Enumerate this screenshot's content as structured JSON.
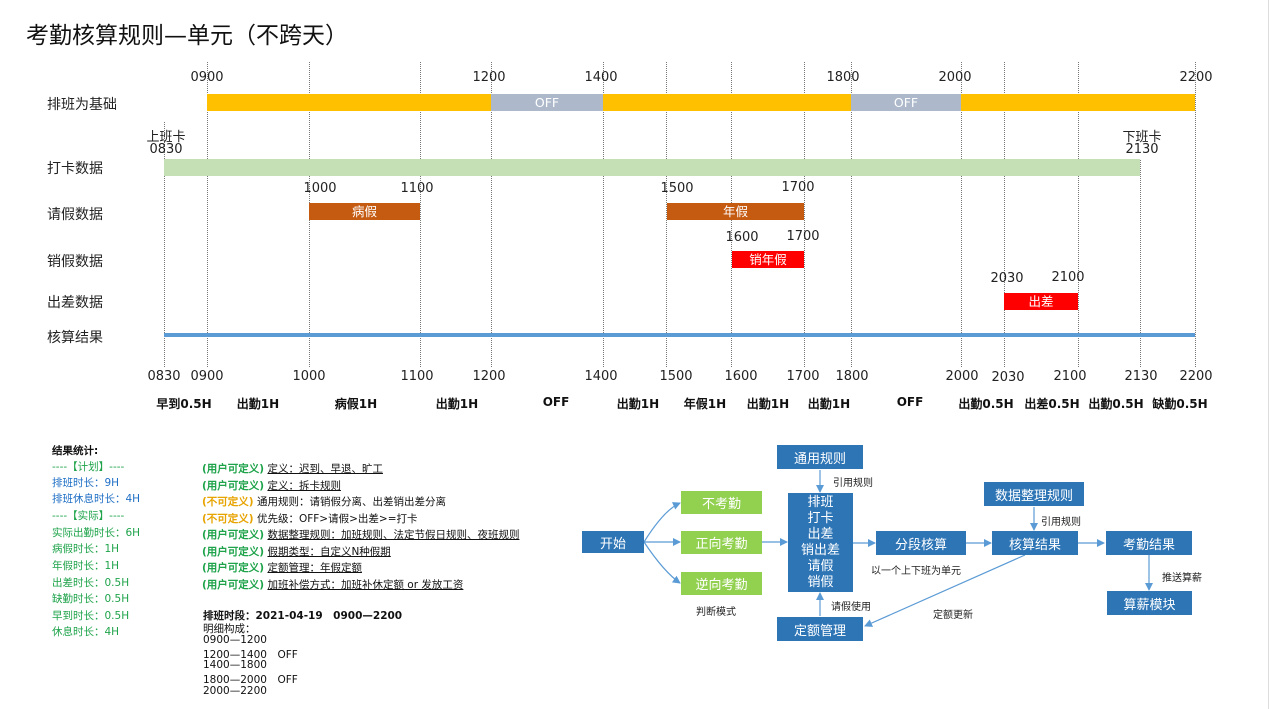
{
  "title": "考勤核算规则—单元（不跨天）",
  "rows": {
    "schedule": "排班为基础",
    "punch": "打卡数据",
    "leave": "请假数据",
    "cancel": "销假数据",
    "trip": "出差数据",
    "result": "核算结果"
  },
  "schedule_times": {
    "t0900": "0900",
    "t1200": "1200",
    "t1400": "1400",
    "t1800": "1800",
    "t2000": "2000",
    "t2200": "2200"
  },
  "schedule_off": [
    "OFF",
    "OFF"
  ],
  "punch": {
    "in_label": "上班卡",
    "in_time": "0830",
    "out_label": "下班卡",
    "out_time": "2130"
  },
  "leave": {
    "sick_start": "1000",
    "sick_end": "1100",
    "sick_label": "病假",
    "annual_start": "1500",
    "annual_end": "1700",
    "annual_label": "年假"
  },
  "cancel": {
    "start": "1600",
    "end": "1700",
    "label": "销年假"
  },
  "trip": {
    "start": "2030",
    "end": "2100",
    "label": "出差"
  },
  "result_ticks": [
    "0830",
    "0900",
    "1000",
    "1100",
    "1200",
    "1400",
    "1500",
    "1600",
    "1700",
    "1800",
    "2000",
    "2030",
    "2100",
    "2130",
    "2200"
  ],
  "result_segments": [
    "早到0.5H",
    "出勤1H",
    "病假1H",
    "出勤1H",
    "OFF",
    "出勤1H",
    "年假1H",
    "出勤1H",
    "出勤1H",
    "OFF",
    "出勤0.5H",
    "出差0.5H",
    "出勤0.5H",
    "缺勤0.5H"
  ],
  "stats": {
    "title": "结果统计:",
    "plan_header": "----【计划】----",
    "plan_work": "排班时长：9H",
    "plan_rest": "排班休息时长：4H",
    "actual_header": "----【实际】----",
    "actual_work": "实际出勤时长：6H",
    "sick": "病假时长：1H",
    "annual": "年假时长：1H",
    "trip": "出差时长：0.5H",
    "absent": "缺勤时长：0.5H",
    "early": "早到时长：0.5H",
    "rest": "休息时长：4H"
  },
  "rules": [
    {
      "tag": "(用户可定义)",
      "text": "定义：迟到、早退、旷工",
      "tone": "g",
      "underline": true
    },
    {
      "tag": "(用户可定义)",
      "text": "定义：拆卡规则",
      "tone": "g",
      "underline": true
    },
    {
      "tag": "(不可定义)",
      "text": "通用规则：请销假分离、出差销出差分离",
      "tone": "o",
      "underline": false
    },
    {
      "tag": "(不可定义)",
      "text": "优先级：OFF>请假>出差>=打卡",
      "tone": "o",
      "underline": false
    },
    {
      "tag": "(用户可定义)",
      "text": "数据整理规则：加班规则、法定节假日规则、夜班规则",
      "tone": "g",
      "underline": true
    },
    {
      "tag": "(用户可定义)",
      "text": "假期类型：自定义N种假期",
      "tone": "g",
      "underline": true
    },
    {
      "tag": "(用户可定义)",
      "text": "定额管理：年假定额",
      "tone": "g",
      "underline": true
    },
    {
      "tag": "(用户可定义)",
      "text": "加班补偿方式：加班补休定额 or 发放工资",
      "tone": "g",
      "underline": true
    }
  ],
  "schedule_info": {
    "heading": "排班时段：2021-04-19　0900—2200",
    "detail_label": "明细构成：",
    "lines": [
      "0900—1200",
      "1200—1400　OFF",
      "1400—1800",
      "1800—2000　OFF",
      "2000—2200"
    ]
  },
  "flow": {
    "start": "开始",
    "no_att": "不考勤",
    "pos_att": "正向考勤",
    "neg_att": "逆向考勤",
    "mode_note": "判断模式",
    "general_rule": "通用规则",
    "ref_rule1": "引用规则",
    "stack": [
      "排班",
      "打卡",
      "出差",
      "销出差",
      "请假",
      "销假"
    ],
    "segment_calc": "分段核算",
    "unit_note": "以一个上下班为单元",
    "data_rule": "数据整理规则",
    "ref_rule2": "引用规则",
    "calc_result": "核算结果",
    "att_result": "考勤结果",
    "push_note": "推送算薪",
    "payroll": "算薪模块",
    "quota": "定额管理",
    "leave_use": "请假使用",
    "quota_update": "定额更新"
  },
  "colors": {
    "schedule": "#ffc000",
    "off": "#adb9ca",
    "punch": "#c5e0b4",
    "leave": "#c55a11",
    "cancel": "#ff0000",
    "trip": "#ff0000",
    "result": "#5b9bd5",
    "flow_blue": "#2e75b6",
    "flow_green": "#92d050"
  }
}
